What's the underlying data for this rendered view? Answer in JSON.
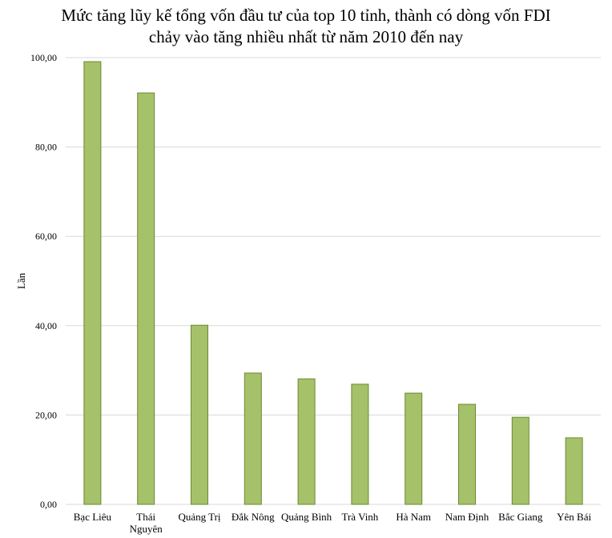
{
  "chart_data": {
    "type": "bar",
    "title_lines": [
      "Mức tăng lũy kế tổng vốn đầu tư của top 10 tỉnh, thành có dòng vốn FDI",
      "chảy vào tăng nhiều nhất từ năm 2010 đến nay"
    ],
    "xlabel": "",
    "ylabel": "Lần",
    "ylim": [
      0,
      100
    ],
    "yticks": [
      "0,00",
      "20,00",
      "40,00",
      "60,00",
      "80,00",
      "100,00"
    ],
    "grid": true,
    "categories": [
      [
        "Bạc Liêu"
      ],
      [
        "Thái",
        "Nguyên"
      ],
      [
        "Quảng Trị"
      ],
      [
        "Đắk Nông"
      ],
      [
        "Quảng Bình"
      ],
      [
        "Trà Vinh"
      ],
      [
        "Hà Nam"
      ],
      [
        "Nam Định"
      ],
      [
        "Bắc Giang"
      ],
      [
        "Yên Bái"
      ]
    ],
    "values": [
      99.1,
      92.1,
      40.1,
      29.4,
      28.1,
      26.9,
      24.9,
      22.4,
      19.5,
      14.9
    ],
    "colors": {
      "bar_fill": "#a5c16a",
      "bar_stroke": "#6a8a2e",
      "grid": "#d9d9d9"
    }
  }
}
